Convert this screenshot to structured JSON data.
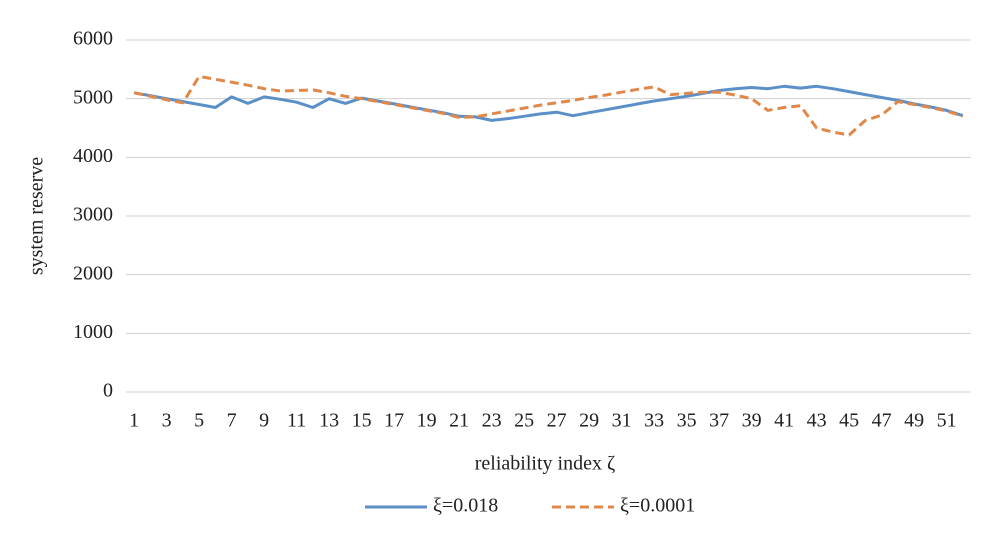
{
  "chart_data": {
    "type": "line",
    "x_label": "reliability index ζ",
    "y_label": "system reserve",
    "categories": [
      "1",
      null,
      "3",
      null,
      "5",
      null,
      "7",
      null,
      "9",
      null,
      "11",
      null,
      "13",
      null,
      "15",
      null,
      "17",
      null,
      "19",
      null,
      "21",
      null,
      "23",
      null,
      "25",
      null,
      "27",
      null,
      "29",
      null,
      "31",
      null,
      "33",
      null,
      "35",
      null,
      "37",
      null,
      "39",
      null,
      "41",
      null,
      "43",
      null,
      "45",
      null,
      "47",
      null,
      "49",
      null,
      "51",
      null
    ],
    "series": [
      {
        "name": "ξ=0.018",
        "color": "#5b8fc7",
        "style": "solid",
        "values": [
          5100,
          5050,
          5000,
          4950,
          4900,
          4850,
          5030,
          4920,
          5030,
          4990,
          4940,
          4850,
          5000,
          4920,
          5010,
          4960,
          4910,
          4860,
          4810,
          4760,
          4700,
          4690,
          4630,
          4660,
          4700,
          4740,
          4770,
          4710,
          4760,
          4810,
          4860,
          4910,
          4960,
          5000,
          5040,
          5090,
          5140,
          5170,
          5190,
          5170,
          5210,
          5180,
          5210,
          5170,
          5120,
          5070,
          5020,
          4970,
          4910,
          4860,
          4800,
          4710
        ]
      },
      {
        "name": "ξ=0.0001",
        "color": "#e0884a",
        "style": "dashed",
        "values": [
          5100,
          5040,
          4980,
          4930,
          5380,
          5330,
          5280,
          5230,
          5170,
          5130,
          5140,
          5150,
          5100,
          5040,
          5000,
          4950,
          4900,
          4850,
          4800,
          4750,
          4680,
          4690,
          4740,
          4790,
          4840,
          4890,
          4930,
          4970,
          5020,
          5060,
          5110,
          5160,
          5200,
          5070,
          5090,
          5110,
          5110,
          5060,
          5000,
          4800,
          4850,
          4880,
          4500,
          4430,
          4380,
          4630,
          4720,
          4950,
          4900,
          4850,
          4790,
          4700
        ]
      }
    ],
    "ylim": [
      0,
      6000
    ],
    "yticks": [
      0,
      1000,
      2000,
      3000,
      4000,
      5000,
      6000
    ],
    "grid": true,
    "legend": "bottom"
  }
}
